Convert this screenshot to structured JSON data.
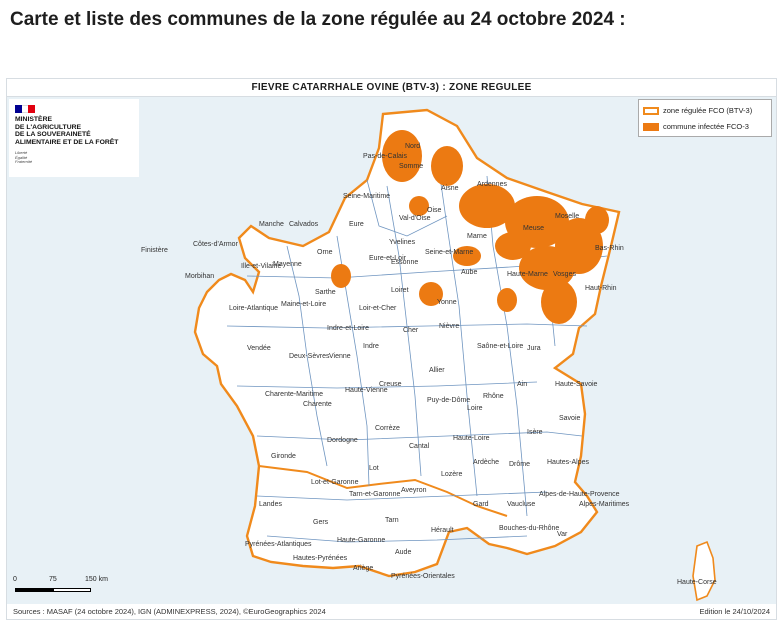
{
  "heading": "Carte et liste des communes de la zone régulée au 24 octobre 2024 :",
  "map": {
    "title": "FIEVRE CATARRHALE OVINE (BTV-3) : ZONE REGULEE",
    "ministry_lines": [
      "MINISTÈRE",
      "DE L'AGRICULTURE",
      "DE LA SOUVERAINETÉ",
      "ALIMENTAIRE ET DE LA FORÊT"
    ],
    "motto_lines": [
      "Liberté",
      "Égalité",
      "Fraternité"
    ],
    "legend": [
      {
        "label": "zone régulée FCO (BTV-3)",
        "color": "#f08a1c",
        "style": "outline"
      },
      {
        "label": "commune infectée FCO-3",
        "color": "#ec7a12",
        "style": "fill"
      }
    ],
    "scale": {
      "t0": "0",
      "t1": "75",
      "t2": "150 km"
    },
    "source": "Sources : MASAF (24 octobre 2024), IGN (ADMINEXPRESS, 2024), ©EuroGeographics 2024",
    "edition": "Edition le 24/10/2024",
    "departments": [
      "Nord",
      "Pas-de-Calais",
      "Somme",
      "Aisne",
      "Ardennes",
      "Oise",
      "Seine-Maritime",
      "Eure",
      "Calvados",
      "Manche",
      "Orne",
      "Sarthe",
      "Eure-et-Loir",
      "Yvelines",
      "Essonne",
      "Val-d'Oise",
      "Seine-et-Marne",
      "Marne",
      "Meuse",
      "Moselle",
      "Bas-Rhin",
      "Haut-Rhin",
      "Vosges",
      "Haute-Marne",
      "Aube",
      "Yonne",
      "Loiret",
      "Loir-et-Cher",
      "Indre-et-Loire",
      "Maine-et-Loire",
      "Mayenne",
      "Ille-et-Vilaine",
      "Côtes-d'Armor",
      "Finistère",
      "Morbihan",
      "Loire-Atlantique",
      "Vendée",
      "Deux-Sèvres",
      "Vienne",
      "Indre",
      "Cher",
      "Nièvre",
      "Saône-et-Loire",
      "Jura",
      "Allier",
      "Ain",
      "Haute-Savoie",
      "Savoie",
      "Isère",
      "Rhône",
      "Loire",
      "Puy-de-Dôme",
      "Creuse",
      "Haute-Vienne",
      "Charente",
      "Charente-Maritime",
      "Corrèze",
      "Cantal",
      "Haute-Loire",
      "Ardèche",
      "Drôme",
      "Hautes-Alpes",
      "Dordogne",
      "Gironde",
      "Lot",
      "Lot-et-Garonne",
      "Tarn-et-Garonne",
      "Aveyron",
      "Lozère",
      "Gard",
      "Vaucluse",
      "Alpes-de-Haute-Provence",
      "Alpes-Maritimes",
      "Landes",
      "Gers",
      "Tarn",
      "Hérault",
      "Bouches-du-Rhône",
      "Var",
      "Pyrénées-Atlantiques",
      "Hautes-Pyrénées",
      "Haute-Garonne",
      "Ariège",
      "Aude",
      "Pyrénées-Orientales",
      "Haute-Corse"
    ]
  }
}
